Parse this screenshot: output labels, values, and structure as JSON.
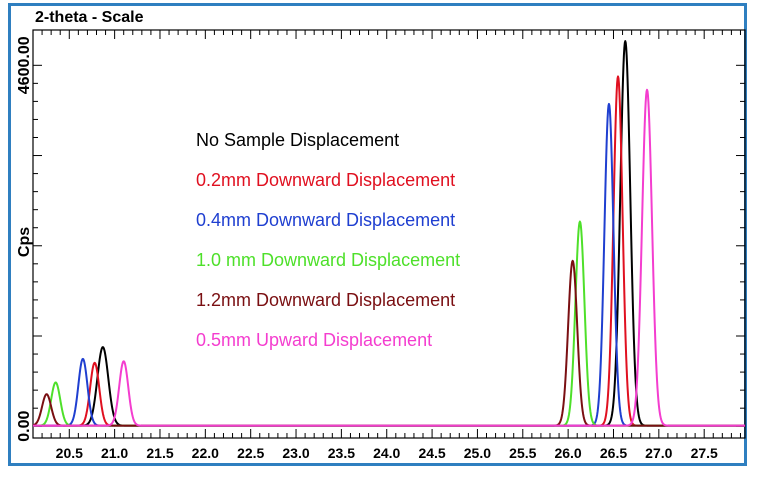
{
  "chart_data": {
    "type": "line",
    "title": "2-theta - Scale",
    "xlabel": "",
    "ylabel": "Cps",
    "xlim": [
      20.1,
      27.95
    ],
    "ylim": [
      -150,
      5050
    ],
    "x_ticks": [
      "20.5",
      "21.0",
      "21.5",
      "22.0",
      "22.5",
      "23.0",
      "23.5",
      "24.0",
      "24.5",
      "25.0",
      "25.5",
      "26.0",
      "26.5",
      "27.0",
      "27.5"
    ],
    "y_ticks": [
      "0.00",
      "4600.00"
    ],
    "grid": false,
    "legend_position": "center",
    "series": [
      {
        "name": "No Sample Displacement",
        "color": "#000000",
        "peaks": [
          {
            "center": 20.87,
            "height": 1000,
            "width": 0.06
          },
          {
            "center": 26.63,
            "height": 4900,
            "width": 0.055
          }
        ]
      },
      {
        "name": "0.2mm Downward Displacement",
        "color": "#e01020",
        "peaks": [
          {
            "center": 20.78,
            "height": 800,
            "width": 0.05
          },
          {
            "center": 26.55,
            "height": 4450,
            "width": 0.05
          }
        ]
      },
      {
        "name": "0.4mm Downward Displacement",
        "color": "#1f3fd0",
        "peaks": [
          {
            "center": 20.65,
            "height": 850,
            "width": 0.05
          },
          {
            "center": 26.45,
            "height": 4100,
            "width": 0.05
          }
        ]
      },
      {
        "name": "1.0 mm Downward Displacement",
        "color": "#4ee02a",
        "peaks": [
          {
            "center": 20.35,
            "height": 550,
            "width": 0.05
          },
          {
            "center": 26.13,
            "height": 2600,
            "width": 0.05
          }
        ]
      },
      {
        "name": "1.2mm Downward Displacement",
        "color": "#7a0f12",
        "peaks": [
          {
            "center": 20.25,
            "height": 400,
            "width": 0.05
          },
          {
            "center": 26.05,
            "height": 2100,
            "width": 0.05
          }
        ]
      },
      {
        "name": "0.5mm Upward Displacement",
        "color": "#f43dcf",
        "peaks": [
          {
            "center": 21.1,
            "height": 820,
            "width": 0.05
          },
          {
            "center": 26.87,
            "height": 4280,
            "width": 0.055
          }
        ]
      }
    ]
  }
}
